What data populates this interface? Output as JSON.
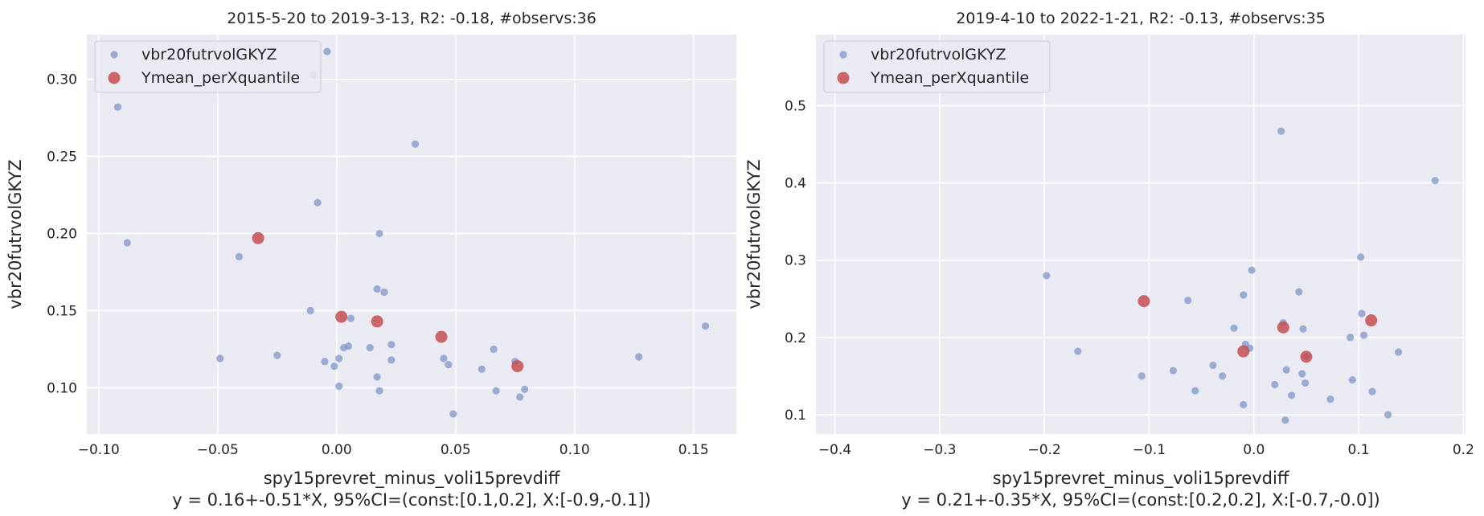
{
  "chart_data": [
    {
      "type": "scatter",
      "title": "2015-5-20 to 2019-3-13, R2: -0.18, #observs:36",
      "xlabel": "spy15prevret_minus_voli15prevdiff",
      "ylabel": "vbr20futrvolGKYZ",
      "regression_text": "y = 0.16+-0.51*X, 95%CI=(const:[0.1,0.2], X:[-0.9,-0.1])",
      "xlim": [
        -0.105,
        0.168
      ],
      "ylim": [
        0.07,
        0.329
      ],
      "xticks": [
        -0.1,
        -0.05,
        0.0,
        0.05,
        0.1,
        0.15
      ],
      "xtick_labels": [
        "−0.10",
        "−0.05",
        "0.00",
        "0.05",
        "0.10",
        "0.15"
      ],
      "yticks": [
        0.1,
        0.15,
        0.2,
        0.25,
        0.3
      ],
      "ytick_labels": [
        "0.10",
        "0.15",
        "0.20",
        "0.25",
        "0.30"
      ],
      "grid": true,
      "legend_position": "top-left",
      "series": [
        {
          "name": "vbr20futrvolGKYZ",
          "color": "#7b93c6",
          "points": [
            [
              -0.092,
              0.282
            ],
            [
              -0.088,
              0.194
            ],
            [
              -0.049,
              0.119
            ],
            [
              -0.041,
              0.185
            ],
            [
              -0.025,
              0.121
            ],
            [
              -0.011,
              0.15
            ],
            [
              -0.008,
              0.22
            ],
            [
              -0.004,
              0.318
            ],
            [
              -0.005,
              0.117
            ],
            [
              -0.001,
              0.114
            ],
            [
              0.001,
              0.101
            ],
            [
              0.001,
              0.119
            ],
            [
              0.003,
              0.126
            ],
            [
              0.005,
              0.127
            ],
            [
              0.006,
              0.145
            ],
            [
              0.014,
              0.126
            ],
            [
              0.017,
              0.107
            ],
            [
              0.017,
              0.164
            ],
            [
              0.018,
              0.2
            ],
            [
              0.018,
              0.098
            ],
            [
              0.02,
              0.162
            ],
            [
              0.023,
              0.128
            ],
            [
              0.023,
              0.118
            ],
            [
              0.033,
              0.258
            ],
            [
              0.045,
              0.119
            ],
            [
              0.047,
              0.115
            ],
            [
              0.049,
              0.083
            ],
            [
              0.061,
              0.112
            ],
            [
              0.066,
              0.125
            ],
            [
              0.067,
              0.098
            ],
            [
              0.075,
              0.117
            ],
            [
              0.077,
              0.094
            ],
            [
              0.079,
              0.099
            ],
            [
              0.127,
              0.12
            ],
            [
              0.155,
              0.14
            ],
            [
              -0.01,
              0.303
            ]
          ]
        },
        {
          "name": "Ymean_perXquantile",
          "color": "#c44e52",
          "points": [
            [
              -0.033,
              0.197
            ],
            [
              0.002,
              0.146
            ],
            [
              0.017,
              0.143
            ],
            [
              0.044,
              0.133
            ],
            [
              0.076,
              0.114
            ]
          ]
        }
      ]
    },
    {
      "type": "scatter",
      "title": "2019-4-10 to 2022-1-21, R2: -0.13, #observs:35",
      "xlabel": "spy15prevret_minus_voli15prevdiff",
      "ylabel": "vbr20futrvolGKYZ",
      "regression_text": "y = 0.21+-0.35*X, 95%CI=(const:[0.2,0.2], X:[-0.7,-0.0])",
      "xlim": [
        -0.418,
        0.202
      ],
      "ylim": [
        0.075,
        0.592
      ],
      "xticks": [
        -0.4,
        -0.3,
        -0.2,
        -0.1,
        0.0,
        0.1,
        0.2
      ],
      "xtick_labels": [
        "−0.4",
        "−0.3",
        "−0.2",
        "−0.1",
        "0.0",
        "0.1",
        "0.2"
      ],
      "yticks": [
        0.1,
        0.2,
        0.3,
        0.4,
        0.5
      ],
      "ytick_labels": [
        "0.1",
        "0.2",
        "0.3",
        "0.4",
        "0.5"
      ],
      "grid": true,
      "legend_position": "top-left",
      "series": [
        {
          "name": "vbr20futrvolGKYZ",
          "color": "#7b93c6",
          "points": [
            [
              -0.198,
              0.28
            ],
            [
              -0.168,
              0.182
            ],
            [
              -0.107,
              0.15
            ],
            [
              -0.077,
              0.157
            ],
            [
              -0.063,
              0.248
            ],
            [
              -0.056,
              0.131
            ],
            [
              -0.039,
              0.164
            ],
            [
              -0.03,
              0.15
            ],
            [
              -0.019,
              0.212
            ],
            [
              -0.01,
              0.255
            ],
            [
              -0.01,
              0.113
            ],
            [
              -0.008,
              0.191
            ],
            [
              -0.004,
              0.186
            ],
            [
              -0.002,
              0.287
            ],
            [
              0.02,
              0.139
            ],
            [
              0.026,
              0.467
            ],
            [
              0.028,
              0.219
            ],
            [
              0.03,
              0.093
            ],
            [
              0.031,
              0.158
            ],
            [
              0.036,
              0.125
            ],
            [
              0.043,
              0.259
            ],
            [
              0.046,
              0.153
            ],
            [
              0.047,
              0.211
            ],
            [
              0.049,
              0.141
            ],
            [
              0.073,
              0.12
            ],
            [
              0.092,
              0.2
            ],
            [
              0.094,
              0.145
            ],
            [
              0.102,
              0.304
            ],
            [
              0.103,
              0.231
            ],
            [
              0.105,
              0.203
            ],
            [
              0.113,
              0.13
            ],
            [
              0.128,
              0.1
            ],
            [
              0.138,
              0.181
            ],
            [
              0.173,
              0.403
            ],
            [
              0.05,
              0.175
            ]
          ]
        },
        {
          "name": "Ymean_perXquantile",
          "color": "#c44e52",
          "points": [
            [
              -0.105,
              0.247
            ],
            [
              -0.01,
              0.182
            ],
            [
              0.028,
              0.213
            ],
            [
              0.05,
              0.175
            ],
            [
              0.112,
              0.222
            ]
          ]
        }
      ]
    }
  ]
}
